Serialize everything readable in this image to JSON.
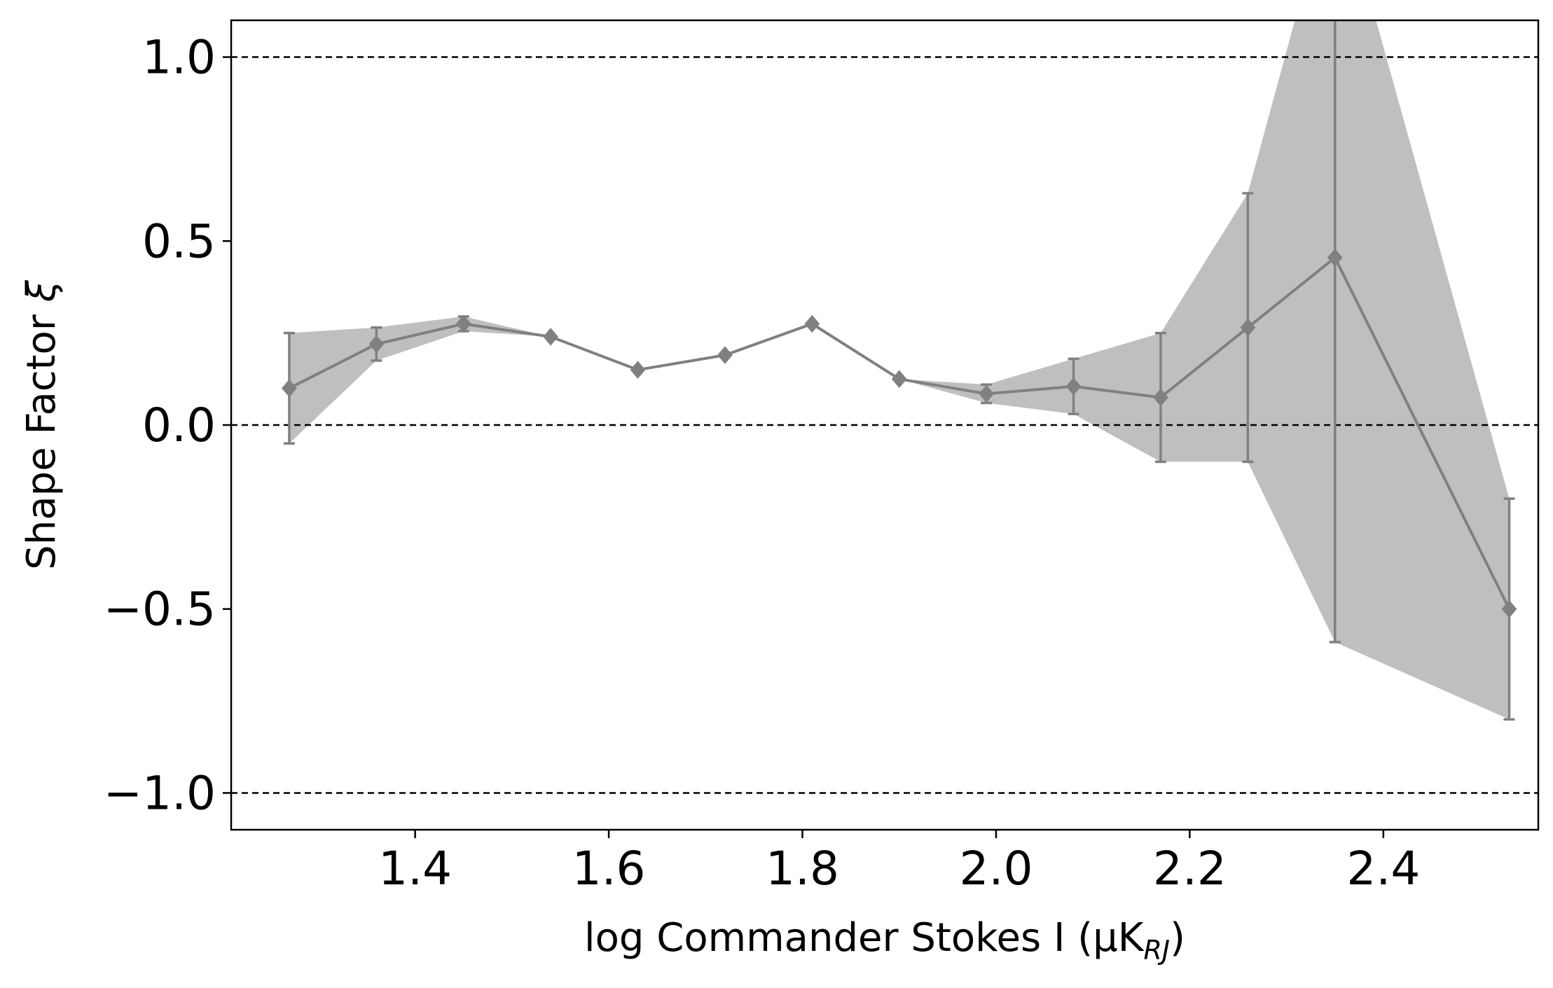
{
  "chart_data": {
    "type": "line",
    "xlabel": "log Commander Stokes I (μK",
    "xlabel_sub": "RJ",
    "xlabel_end": ")",
    "ylabel": "Shape Factor",
    "ylabel_symbol": "ξ",
    "xlim": [
      1.21,
      2.56
    ],
    "ylim": [
      -1.1,
      1.1
    ],
    "x_ticks": [
      1.4,
      1.6,
      1.8,
      2.0,
      2.2,
      2.4
    ],
    "x_tick_labels": [
      "1.4",
      "1.6",
      "1.8",
      "2.0",
      "2.2",
      "2.4"
    ],
    "y_ticks": [
      1.0,
      0.5,
      0.0,
      -0.5,
      -1.0
    ],
    "y_tick_labels": [
      "1.0",
      "0.5",
      "0.0",
      "−0.5",
      "−1.0"
    ],
    "reference_lines": [
      1.0,
      0.0,
      -1.0
    ],
    "series": [
      {
        "color": "#808080",
        "band_color": "#bfbfbf",
        "marker": "diamond",
        "points": [
          {
            "x": 1.27,
            "y": 0.1,
            "err": 0.15
          },
          {
            "x": 1.36,
            "y": 0.22,
            "err": 0.045
          },
          {
            "x": 1.45,
            "y": 0.275,
            "err": 0.02
          },
          {
            "x": 1.54,
            "y": 0.24,
            "err": 0.0
          },
          {
            "x": 1.63,
            "y": 0.15,
            "err": 0.0
          },
          {
            "x": 1.72,
            "y": 0.19,
            "err": 0.0
          },
          {
            "x": 1.81,
            "y": 0.275,
            "err": 0.0
          },
          {
            "x": 1.9,
            "y": 0.125,
            "err": 0.0
          },
          {
            "x": 1.99,
            "y": 0.085,
            "err": 0.025
          },
          {
            "x": 2.08,
            "y": 0.105,
            "err": 0.075
          },
          {
            "x": 2.17,
            "y": 0.075,
            "err": 0.175
          },
          {
            "x": 2.26,
            "y": 0.265,
            "err": 0.365
          },
          {
            "x": 2.35,
            "y": 0.455,
            "err": 1.045
          },
          {
            "x": 2.53,
            "y": -0.5,
            "err": 0.3
          }
        ]
      }
    ]
  }
}
